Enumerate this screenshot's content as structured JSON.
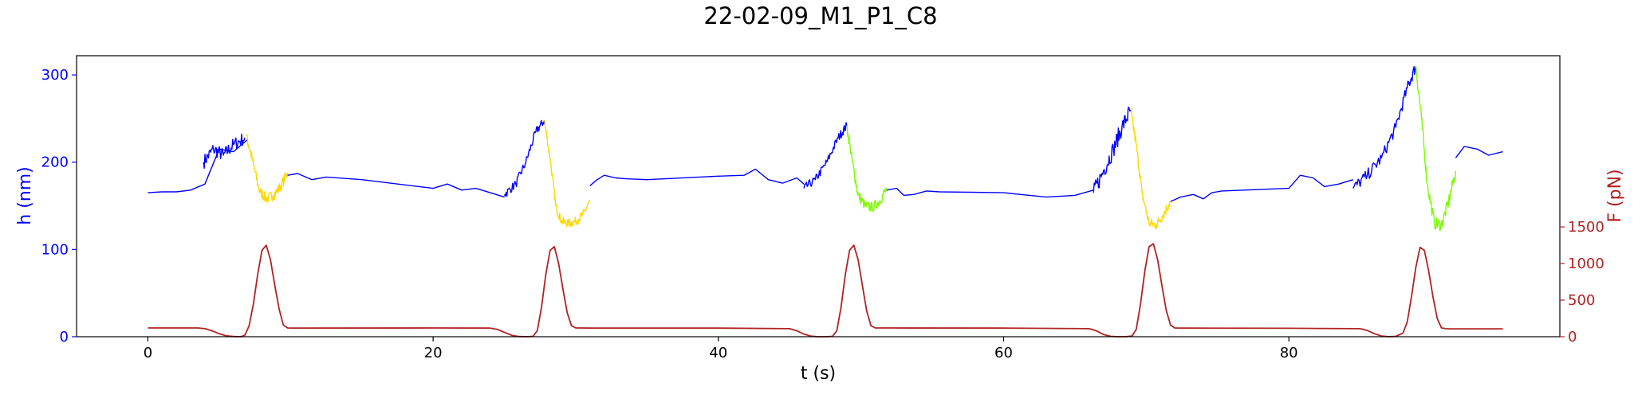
{
  "chart_data": {
    "type": "line",
    "title": "22-02-09_M1_P1_C8",
    "xlabel": "t (s)",
    "ylabel": "h (nm)",
    "y2label": "F (pN)",
    "xlim": [
      -5,
      99
    ],
    "ylim": [
      0,
      322
    ],
    "y2lim": [
      0,
      3840
    ],
    "xticks": [
      0,
      20,
      40,
      60,
      80
    ],
    "yticks": [
      0,
      100,
      200,
      300
    ],
    "y2ticks": [
      0,
      500,
      1000,
      1500
    ],
    "colors": {
      "height": "#0000ff",
      "force": "#b22222",
      "yellow": "#ffd700",
      "green": "#7cfc00",
      "left_axis": "#0000ff",
      "right_axis": "#b22222"
    },
    "series": [
      {
        "axis": "left",
        "color": "#0000ff",
        "noise": 0,
        "x": [
          0,
          1,
          2,
          3,
          4,
          5,
          6,
          7
        ],
        "y": [
          165,
          166,
          166,
          168,
          175,
          215,
          212,
          226
        ]
      },
      {
        "axis": "left",
        "color": "#0000ff",
        "noise": 8,
        "x": [
          3.9,
          4.6,
          5.3,
          6.0,
          6.8
        ],
        "y": [
          200,
          215,
          208,
          220,
          228
        ]
      },
      {
        "axis": "left",
        "color": "#ffd700",
        "noise": 6,
        "x": [
          6.9,
          7.3,
          7.8,
          8.3,
          8.8,
          9.3,
          9.8
        ],
        "y": [
          230,
          205,
          168,
          158,
          162,
          172,
          188
        ]
      },
      {
        "axis": "left",
        "color": "#0000ff",
        "noise": 0,
        "x": [
          9.8,
          10.5,
          11.5,
          12.5,
          15,
          20,
          21,
          22,
          23,
          24,
          25
        ],
        "y": [
          185,
          187,
          180,
          183,
          180,
          170,
          175,
          168,
          170,
          165,
          160
        ]
      },
      {
        "axis": "left",
        "color": "#0000ff",
        "noise": 5,
        "x": [
          25,
          25.8,
          26.5,
          27.2,
          27.8
        ],
        "y": [
          163,
          175,
          200,
          235,
          248
        ]
      },
      {
        "axis": "left",
        "color": "#ffd700",
        "noise": 5,
        "x": [
          27.8,
          28.2,
          28.6,
          29.0,
          29.5,
          30.0,
          30.5,
          31.0
        ],
        "y": [
          248,
          205,
          150,
          132,
          130,
          132,
          140,
          155
        ]
      },
      {
        "axis": "left",
        "color": "#0000ff",
        "noise": 0,
        "x": [
          31,
          31.5,
          32,
          32.8,
          33.5,
          35,
          40,
          41.8,
          42.6,
          43.5,
          44.5,
          45.5,
          46.0
        ],
        "y": [
          173,
          180,
          185,
          182,
          181,
          180,
          184,
          185,
          192,
          180,
          176,
          182,
          175
        ]
      },
      {
        "axis": "left",
        "color": "#0000ff",
        "noise": 5,
        "x": [
          46,
          46.8,
          47.6,
          48.4,
          49.0
        ],
        "y": [
          170,
          180,
          200,
          228,
          242
        ]
      },
      {
        "axis": "left",
        "color": "#7cfc00",
        "noise": 6,
        "x": [
          49.0,
          49.4,
          49.8,
          50.3,
          50.8,
          51.3,
          51.8
        ],
        "y": [
          242,
          200,
          162,
          150,
          148,
          155,
          170
        ]
      },
      {
        "axis": "left",
        "color": "#0000ff",
        "noise": 0,
        "x": [
          51.8,
          52.5,
          53,
          53.7,
          54.6,
          55.5,
          60,
          63,
          65,
          66.3
        ],
        "y": [
          168,
          170,
          162,
          163,
          167,
          166,
          165,
          160,
          162,
          168
        ]
      },
      {
        "axis": "left",
        "color": "#0000ff",
        "noise": 10,
        "x": [
          66.3,
          67.0,
          67.7,
          68.3,
          68.9
        ],
        "y": [
          165,
          190,
          215,
          240,
          260
        ]
      },
      {
        "axis": "left",
        "color": "#ffd700",
        "noise": 6,
        "x": [
          68.9,
          69.3,
          69.7,
          70.2,
          70.7,
          71.2,
          71.7
        ],
        "y": [
          260,
          220,
          165,
          130,
          128,
          140,
          155
        ]
      },
      {
        "axis": "left",
        "color": "#0000ff",
        "noise": 0,
        "x": [
          71.7,
          72.4,
          73.3,
          74,
          74.6,
          75.3,
          80,
          80.8,
          81.7,
          82.5,
          83.5,
          84.5
        ],
        "y": [
          155,
          160,
          163,
          158,
          165,
          167,
          170,
          185,
          182,
          172,
          175,
          180
        ]
      },
      {
        "axis": "left",
        "color": "#0000ff",
        "noise": 7,
        "x": [
          84.5,
          85.5,
          86.5,
          87.5,
          88.3,
          88.9
        ],
        "y": [
          170,
          185,
          205,
          240,
          285,
          310
        ]
      },
      {
        "axis": "left",
        "color": "#7cfc00",
        "noise": 7,
        "x": [
          88.9,
          89.3,
          89.7,
          90.2,
          90.7,
          91.2,
          91.7
        ],
        "y": [
          310,
          250,
          175,
          130,
          128,
          155,
          190
        ]
      },
      {
        "axis": "left",
        "color": "#0000ff",
        "noise": 0,
        "x": [
          91.7,
          92.3,
          93.2,
          94.0,
          95.0
        ],
        "y": [
          205,
          218,
          215,
          208,
          212
        ]
      },
      {
        "axis": "right",
        "color": "#b22222",
        "noise": 0,
        "x": [
          0,
          3.5,
          4.0,
          4.5,
          5.0,
          5.5,
          6.0,
          6.5,
          6.8,
          7.1,
          7.4,
          7.7,
          8.0,
          8.3,
          8.6,
          8.9,
          9.2,
          9.5,
          9.8,
          10.5,
          20,
          24.0,
          24.5,
          25.0,
          25.5,
          26.0,
          26.5,
          27.0,
          27.3,
          27.6,
          27.9,
          28.2,
          28.5,
          28.8,
          29.1,
          29.4,
          29.7,
          30.0,
          30.3,
          31.0,
          40,
          45.0,
          45.5,
          46.0,
          46.5,
          47.0,
          47.5,
          48.0,
          48.3,
          48.6,
          48.9,
          49.2,
          49.5,
          49.8,
          50.1,
          50.4,
          50.7,
          51.0,
          51.3,
          52.0,
          60,
          66.0,
          66.5,
          67.0,
          67.5,
          68.0,
          68.5,
          69.0,
          69.3,
          69.6,
          69.9,
          70.2,
          70.5,
          70.8,
          71.1,
          71.4,
          71.7,
          72.0,
          72.3,
          73.0,
          80,
          85.0,
          85.5,
          86.0,
          86.5,
          87.0,
          87.5,
          88.0,
          88.3,
          88.6,
          88.9,
          89.2,
          89.5,
          89.8,
          90.1,
          90.4,
          90.7,
          91.0,
          91.3,
          92.0,
          95.0
        ],
        "y": [
          120,
          120,
          110,
          80,
          40,
          12,
          3,
          0,
          20,
          150,
          450,
          850,
          1180,
          1250,
          1050,
          700,
          380,
          160,
          120,
          118,
          120,
          118,
          100,
          60,
          20,
          3,
          0,
          5,
          80,
          400,
          850,
          1180,
          1230,
          1000,
          650,
          330,
          150,
          120,
          120,
          118,
          118,
          110,
          80,
          35,
          8,
          0,
          0,
          5,
          80,
          400,
          850,
          1180,
          1250,
          1050,
          700,
          350,
          150,
          120,
          120,
          120,
          118,
          110,
          80,
          30,
          5,
          0,
          0,
          10,
          100,
          450,
          900,
          1230,
          1270,
          1050,
          700,
          360,
          160,
          120,
          118,
          118,
          115,
          110,
          85,
          40,
          10,
          0,
          5,
          50,
          200,
          550,
          950,
          1220,
          1180,
          900,
          550,
          250,
          120,
          110,
          108,
          108,
          108
        ]
      }
    ]
  }
}
